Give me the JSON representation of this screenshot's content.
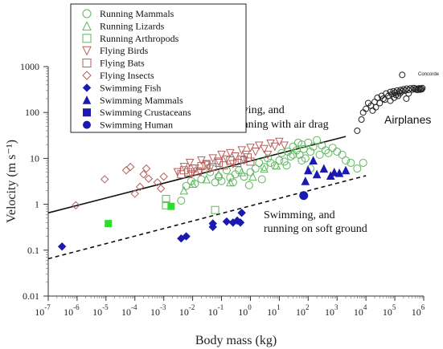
{
  "chart_data": {
    "type": "scatter",
    "xscale": "log",
    "yscale": "log",
    "xlim": [
      1e-07,
      1000000.0
    ],
    "ylim": [
      0.01,
      1000
    ],
    "xlabel": "Body mass (kg)",
    "ylabel": "Velocity (m s⁻¹)",
    "x_ticks": [
      {
        "value": 1e-07,
        "base": "10",
        "exp": "-7"
      },
      {
        "value": 1e-06,
        "base": "10",
        "exp": "-6"
      },
      {
        "value": 1e-05,
        "base": "10",
        "exp": "-5"
      },
      {
        "value": 0.0001,
        "base": "10",
        "exp": "-4"
      },
      {
        "value": 0.001,
        "base": "10",
        "exp": "-3"
      },
      {
        "value": 0.01,
        "base": "10",
        "exp": "-2"
      },
      {
        "value": 0.1,
        "base": "10",
        "exp": "-1"
      },
      {
        "value": 1,
        "base": "10",
        "exp": "0"
      },
      {
        "value": 10,
        "base": "10",
        "exp": "1"
      },
      {
        "value": 100,
        "base": "10",
        "exp": "2"
      },
      {
        "value": 1000,
        "base": "10",
        "exp": "3"
      },
      {
        "value": 10000,
        "base": "10",
        "exp": "4"
      },
      {
        "value": 100000,
        "base": "10",
        "exp": "5"
      },
      {
        "value": 1000000,
        "base": "10",
        "exp": "6"
      }
    ],
    "y_ticks": [
      {
        "value": 0.01,
        "label": "0.01"
      },
      {
        "value": 0.1,
        "label": "0.1"
      },
      {
        "value": 1,
        "label": "1"
      },
      {
        "value": 10,
        "label": "10"
      },
      {
        "value": 100,
        "label": "100"
      },
      {
        "value": 1000,
        "label": "1000"
      }
    ],
    "legend_position": "top-left",
    "series": [
      {
        "name": "Running Mammals",
        "marker": "circle-open",
        "color": "#5cb85c",
        "points": [
          [
            0.004,
            1.2
          ],
          [
            0.006,
            2.5
          ],
          [
            0.009,
            3.2
          ],
          [
            0.012,
            2.8
          ],
          [
            0.02,
            3.5
          ],
          [
            0.04,
            5.0
          ],
          [
            0.06,
            3.0
          ],
          [
            0.08,
            4.0
          ],
          [
            0.1,
            3.2
          ],
          [
            0.15,
            5.5
          ],
          [
            0.2,
            3.8
          ],
          [
            0.3,
            4.5
          ],
          [
            0.4,
            5.5
          ],
          [
            0.6,
            4.0
          ],
          [
            1,
            5.0
          ],
          [
            1.5,
            6.0
          ],
          [
            2,
            8.0
          ],
          [
            3,
            6.5
          ],
          [
            4,
            10
          ],
          [
            5,
            8.0
          ],
          [
            7,
            7.0
          ],
          [
            10,
            9.0
          ],
          [
            12,
            13
          ],
          [
            15,
            8.5
          ],
          [
            20,
            14
          ],
          [
            25,
            11
          ],
          [
            30,
            18
          ],
          [
            40,
            15
          ],
          [
            50,
            12
          ],
          [
            60,
            20
          ],
          [
            70,
            16
          ],
          [
            80,
            10
          ],
          [
            100,
            22
          ],
          [
            120,
            14
          ],
          [
            150,
            18
          ],
          [
            200,
            25
          ],
          [
            250,
            12
          ],
          [
            300,
            19
          ],
          [
            400,
            15
          ],
          [
            500,
            13
          ],
          [
            700,
            17
          ],
          [
            1000,
            14
          ],
          [
            1500,
            12
          ],
          [
            2000,
            9
          ],
          [
            3000,
            8
          ],
          [
            5000,
            6
          ],
          [
            8000,
            8
          ],
          [
            120,
            6
          ],
          [
            60,
            9
          ],
          [
            30,
            12
          ],
          [
            18,
            7
          ],
          [
            2.5,
            3.5
          ],
          [
            0.9,
            2.6
          ],
          [
            0.25,
            3.0
          ],
          [
            45,
            22
          ]
        ]
      },
      {
        "name": "Running Lizards",
        "marker": "triangle-up-open",
        "color": "#5cb85c",
        "points": [
          [
            0.005,
            2.0
          ],
          [
            0.01,
            2.8
          ],
          [
            0.03,
            3.5
          ],
          [
            0.08,
            4.5
          ],
          [
            0.2,
            3.0
          ],
          [
            0.5,
            5.0
          ],
          [
            1.2,
            4.0
          ],
          [
            3,
            6.0
          ],
          [
            8,
            7.0
          ]
        ]
      },
      {
        "name": "Running Arthropods",
        "marker": "square-open",
        "color": "#5cb85c",
        "points": [
          [
            0.0012,
            1.3
          ],
          [
            0.0012,
            0.95
          ],
          [
            0.06,
            0.75
          ]
        ]
      },
      {
        "name": "Flying Birds",
        "marker": "triangle-down-open",
        "color": "#b5615e",
        "points": [
          [
            0.003,
            5.0
          ],
          [
            0.005,
            6.5
          ],
          [
            0.008,
            8.0
          ],
          [
            0.012,
            6.0
          ],
          [
            0.02,
            9.0
          ],
          [
            0.03,
            7.5
          ],
          [
            0.05,
            10
          ],
          [
            0.08,
            8.5
          ],
          [
            0.1,
            12
          ],
          [
            0.15,
            9.5
          ],
          [
            0.2,
            13
          ],
          [
            0.3,
            11
          ],
          [
            0.5,
            15
          ],
          [
            0.7,
            12
          ],
          [
            1,
            17
          ],
          [
            1.5,
            14
          ],
          [
            2,
            19
          ],
          [
            3,
            16
          ],
          [
            5,
            21
          ],
          [
            7,
            18
          ],
          [
            10,
            23
          ],
          [
            15,
            19
          ],
          [
            0.04,
            6.0
          ],
          [
            0.25,
            7.5
          ],
          [
            0.6,
            9.0
          ],
          [
            4,
            12
          ],
          [
            0.009,
            4.5
          ],
          [
            0.018,
            5.0
          ]
        ]
      },
      {
        "name": "Flying Bats",
        "marker": "square-open",
        "color": "#b5615e",
        "points": [
          [
            0.004,
            4.5
          ],
          [
            0.005,
            5.5
          ],
          [
            0.007,
            5.0
          ],
          [
            0.01,
            6.0
          ],
          [
            0.015,
            5.2
          ],
          [
            0.02,
            6.8
          ],
          [
            0.03,
            7.2
          ],
          [
            0.05,
            6.5
          ],
          [
            0.08,
            8.0
          ],
          [
            0.12,
            7.0
          ],
          [
            0.2,
            9.0
          ],
          [
            0.35,
            8.0
          ],
          [
            0.5,
            9.5
          ],
          [
            0.8,
            10.5
          ],
          [
            1.0,
            8.5
          ]
        ]
      },
      {
        "name": "Flying Insects",
        "marker": "diamond-open",
        "color": "#b5615e",
        "points": [
          [
            9e-07,
            0.95
          ],
          [
            9e-06,
            3.5
          ],
          [
            5e-05,
            5.5
          ],
          [
            7e-05,
            6.5
          ],
          [
            0.0001,
            1.7
          ],
          [
            0.00015,
            2.4
          ],
          [
            0.0002,
            4.5
          ],
          [
            0.00025,
            6.0
          ],
          [
            0.0006,
            3.0
          ],
          [
            0.0008,
            2.2
          ],
          [
            0.001,
            4.0
          ],
          [
            0.0003,
            3.6
          ]
        ]
      },
      {
        "name": "Swimming Fish",
        "marker": "diamond-filled",
        "color": "#1a1ab0",
        "points": [
          [
            3e-07,
            0.12
          ],
          [
            0.004,
            0.18
          ],
          [
            0.006,
            0.2
          ],
          [
            0.05,
            0.32
          ],
          [
            0.05,
            0.38
          ],
          [
            0.15,
            0.42
          ],
          [
            0.25,
            0.4
          ],
          [
            0.35,
            0.44
          ],
          [
            0.45,
            0.4
          ],
          [
            0.5,
            0.65
          ]
        ]
      },
      {
        "name": "Swimming Mammals",
        "marker": "triangle-up-filled",
        "color": "#1a1ab0",
        "points": [
          [
            80,
            3.2
          ],
          [
            100,
            5.5
          ],
          [
            150,
            9.0
          ],
          [
            200,
            4.5
          ],
          [
            350,
            6.0
          ],
          [
            600,
            4.2
          ],
          [
            800,
            5.0
          ],
          [
            1200,
            4.8
          ],
          [
            2000,
            5.5
          ]
        ]
      },
      {
        "name": "Swimming Crustaceans",
        "marker": "square-filled",
        "color": "#1a1ab0",
        "points": []
      },
      {
        "name": "Swimming Human",
        "marker": "circle-filled",
        "color": "#1a1ab0",
        "points": [
          [
            70,
            1.55
          ]
        ]
      },
      {
        "name": "Running Arthropods (green fill)",
        "marker": "square-filled-green",
        "color": "#2edc2e",
        "in_legend": false,
        "points": [
          [
            1.2e-05,
            0.38
          ],
          [
            0.0018,
            0.9
          ]
        ]
      },
      {
        "name": "Airplanes",
        "marker": "circle-open",
        "color": "#222222",
        "in_legend": false,
        "points": [
          [
            5000,
            40
          ],
          [
            8000,
            100
          ],
          [
            10000,
            120
          ],
          [
            12000,
            160
          ],
          [
            15000,
            140
          ],
          [
            20000,
            170
          ],
          [
            25000,
            210
          ],
          [
            30000,
            160
          ],
          [
            35000,
            230
          ],
          [
            40000,
            200
          ],
          [
            50000,
            260
          ],
          [
            60000,
            230
          ],
          [
            70000,
            280
          ],
          [
            80000,
            250
          ],
          [
            90000,
            290
          ],
          [
            100000,
            270
          ],
          [
            120000,
            300
          ],
          [
            140000,
            280
          ],
          [
            160000,
            310
          ],
          [
            180000,
            290
          ],
          [
            200000,
            320
          ],
          [
            230000,
            300
          ],
          [
            260000,
            330
          ],
          [
            300000,
            310
          ],
          [
            350000,
            335
          ],
          [
            400000,
            315
          ],
          [
            450000,
            340
          ],
          [
            500000,
            320
          ],
          [
            550000,
            330
          ],
          [
            600000,
            310
          ],
          [
            650000,
            325
          ],
          [
            700000,
            335
          ],
          [
            750000,
            315
          ],
          [
            800000,
            330
          ],
          [
            850000,
            320
          ],
          [
            900000,
            340
          ],
          [
            110000,
            240
          ],
          [
            150000,
            260
          ],
          [
            70000,
            180
          ],
          [
            45000,
            190
          ],
          [
            22000,
            130
          ],
          [
            17000,
            110
          ],
          [
            7000,
            70
          ],
          [
            300000,
            260
          ],
          [
            250000,
            200
          ],
          [
            130000,
            230
          ],
          [
            95000,
            210
          ]
        ]
      },
      {
        "name": "Concorde",
        "marker": "circle-open",
        "color": "#222222",
        "in_legend": false,
        "points": [
          [
            180000,
            660
          ]
        ]
      }
    ],
    "fit_lines": [
      {
        "label": "Flying, and running with air drag",
        "style": "solid",
        "x": [
          1e-07,
          2000
        ],
        "y": [
          0.65,
          30
        ]
      },
      {
        "label": "Swimming, and running on soft ground",
        "style": "dashed",
        "x": [
          1e-07,
          10000
        ],
        "y": [
          0.065,
          4.2
        ]
      }
    ],
    "annotations": {
      "flying_line1": "Flying, and",
      "flying_line2": "running with air drag",
      "swim_line1": "Swimming, and",
      "swim_line2": "running on soft ground",
      "airplanes": "Airplanes",
      "concorde": "Concorde"
    }
  }
}
